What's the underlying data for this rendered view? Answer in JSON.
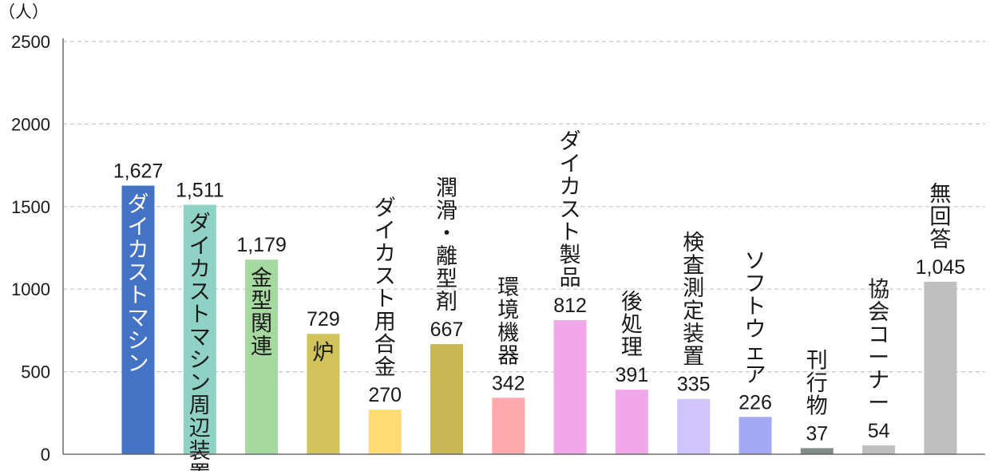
{
  "chart_data": {
    "type": "bar",
    "unit_label": "（人）",
    "y_ticks": [
      "2500",
      "2000",
      "1500",
      "1000",
      "500",
      "0"
    ],
    "ylim": [
      0,
      2500
    ],
    "grid": true,
    "legend": "none",
    "categories": [
      "ダイカストマシン",
      "ダイカストマシン周辺装置",
      "金型関連",
      "炉",
      "ダイカスト用合金",
      "潤滑・離型剤",
      "環境機器",
      "ダイカスト製品",
      "後処理",
      "検査測定装置",
      "ソフトウェア",
      "刊行物",
      "協会コーナー",
      "無回答"
    ],
    "values": [
      1627,
      1511,
      1179,
      729,
      270,
      667,
      342,
      812,
      391,
      335,
      226,
      37,
      54,
      1045
    ],
    "value_labels": [
      "1,627",
      "1,511",
      "1,179",
      "729",
      "270",
      "667",
      "342",
      "812",
      "391",
      "335",
      "226",
      "37",
      "54",
      "1,045"
    ],
    "colors": [
      "#4472c4",
      "#8fd1c4",
      "#a6d9a0",
      "#d1c25a",
      "#ffdd73",
      "#c9b754",
      "#ffaaaa",
      "#f0a8ea",
      "#f0a8ea",
      "#cfc4fb",
      "#a4a9f7",
      "#7f8c85",
      "#bfbfbf",
      "#bfbfbf"
    ]
  }
}
